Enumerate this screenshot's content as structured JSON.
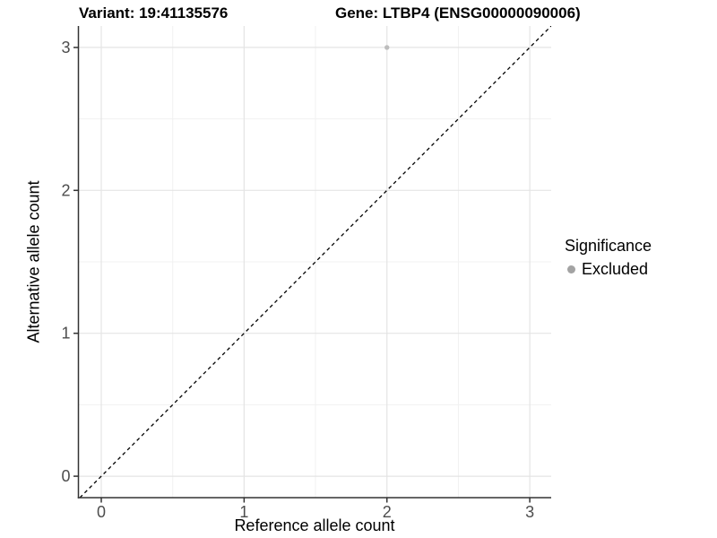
{
  "figure": {
    "title_left": "Variant: 19:41135576",
    "title_right": "Gene: LTBP4 (ENSG00000090006)"
  },
  "legend": {
    "title": "Significance",
    "item_label": "Excluded",
    "marker_color": "#a3a3a3"
  },
  "colors": {
    "background": "#ffffff",
    "grid_major": "#e4e4e4",
    "grid_minor": "#f1f1f1",
    "axis_line": "#333333",
    "tick_mark": "#333333",
    "tick_text": "#4d4d4d",
    "title_text": "#000000",
    "point": "#bdbdbd",
    "identity_line": "#000000"
  },
  "chart_data": {
    "type": "scatter",
    "title_left": "Variant: 19:41135576",
    "title_right": "Gene: LTBP4 (ENSG00000090006)",
    "xlabel": "Reference allele count",
    "ylabel": "Alternative allele count",
    "xlim": [
      -0.16,
      3.15
    ],
    "ylim": [
      -0.15,
      3.15
    ],
    "x_ticks": [
      0,
      1,
      2,
      3
    ],
    "y_ticks": [
      0,
      1,
      2,
      3
    ],
    "x_minor": [
      0.5,
      1.5,
      2.5
    ],
    "y_minor": [
      0.5,
      1.5,
      2.5
    ],
    "grid": "major+minor on white panel",
    "identity_line": {
      "slope": 1,
      "intercept": 0,
      "style": "dashed"
    },
    "legend_position": "right",
    "legend_title": "Significance",
    "series": [
      {
        "name": "Excluded",
        "points": [
          {
            "x": 2,
            "y": 3
          }
        ]
      }
    ]
  }
}
